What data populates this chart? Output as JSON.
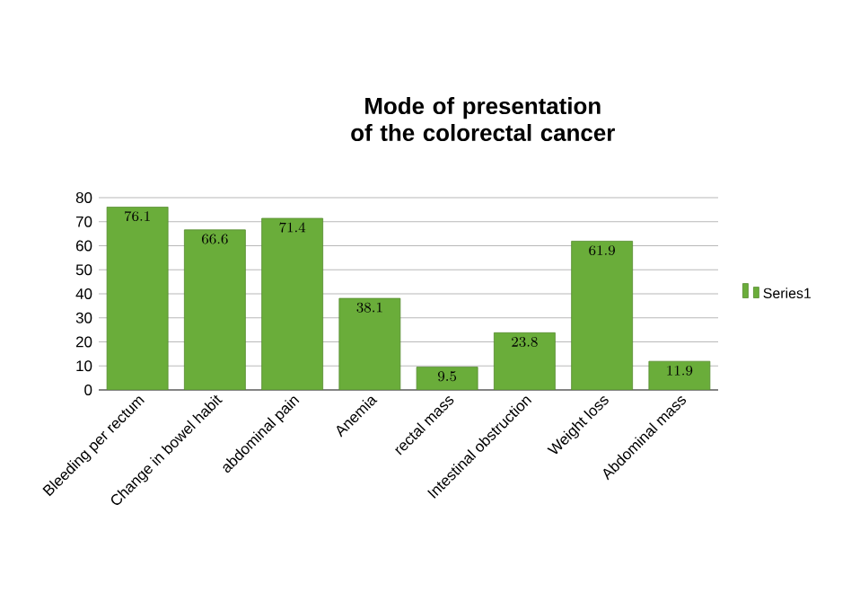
{
  "chart_data": {
    "type": "bar",
    "title": "Mode of presentation of the colorectal cancer",
    "categories": [
      "Bleeding per rectum",
      "Change in bowel habit",
      "abdominal pain",
      "Anemia",
      "rectal mass",
      "Intestinal obstruction",
      "Weight loss",
      "Abdominal mass"
    ],
    "series": [
      {
        "name": "Series1",
        "color": "#6aad3a",
        "values": [
          76.1,
          66.6,
          71.4,
          38.1,
          9.5,
          23.8,
          61.9,
          11.9
        ]
      }
    ],
    "ylim": [
      0,
      80
    ],
    "yticks": [
      0,
      10,
      20,
      30,
      40,
      50,
      60,
      70,
      80
    ],
    "grid": "y",
    "legend": "right",
    "data_labels": true
  }
}
